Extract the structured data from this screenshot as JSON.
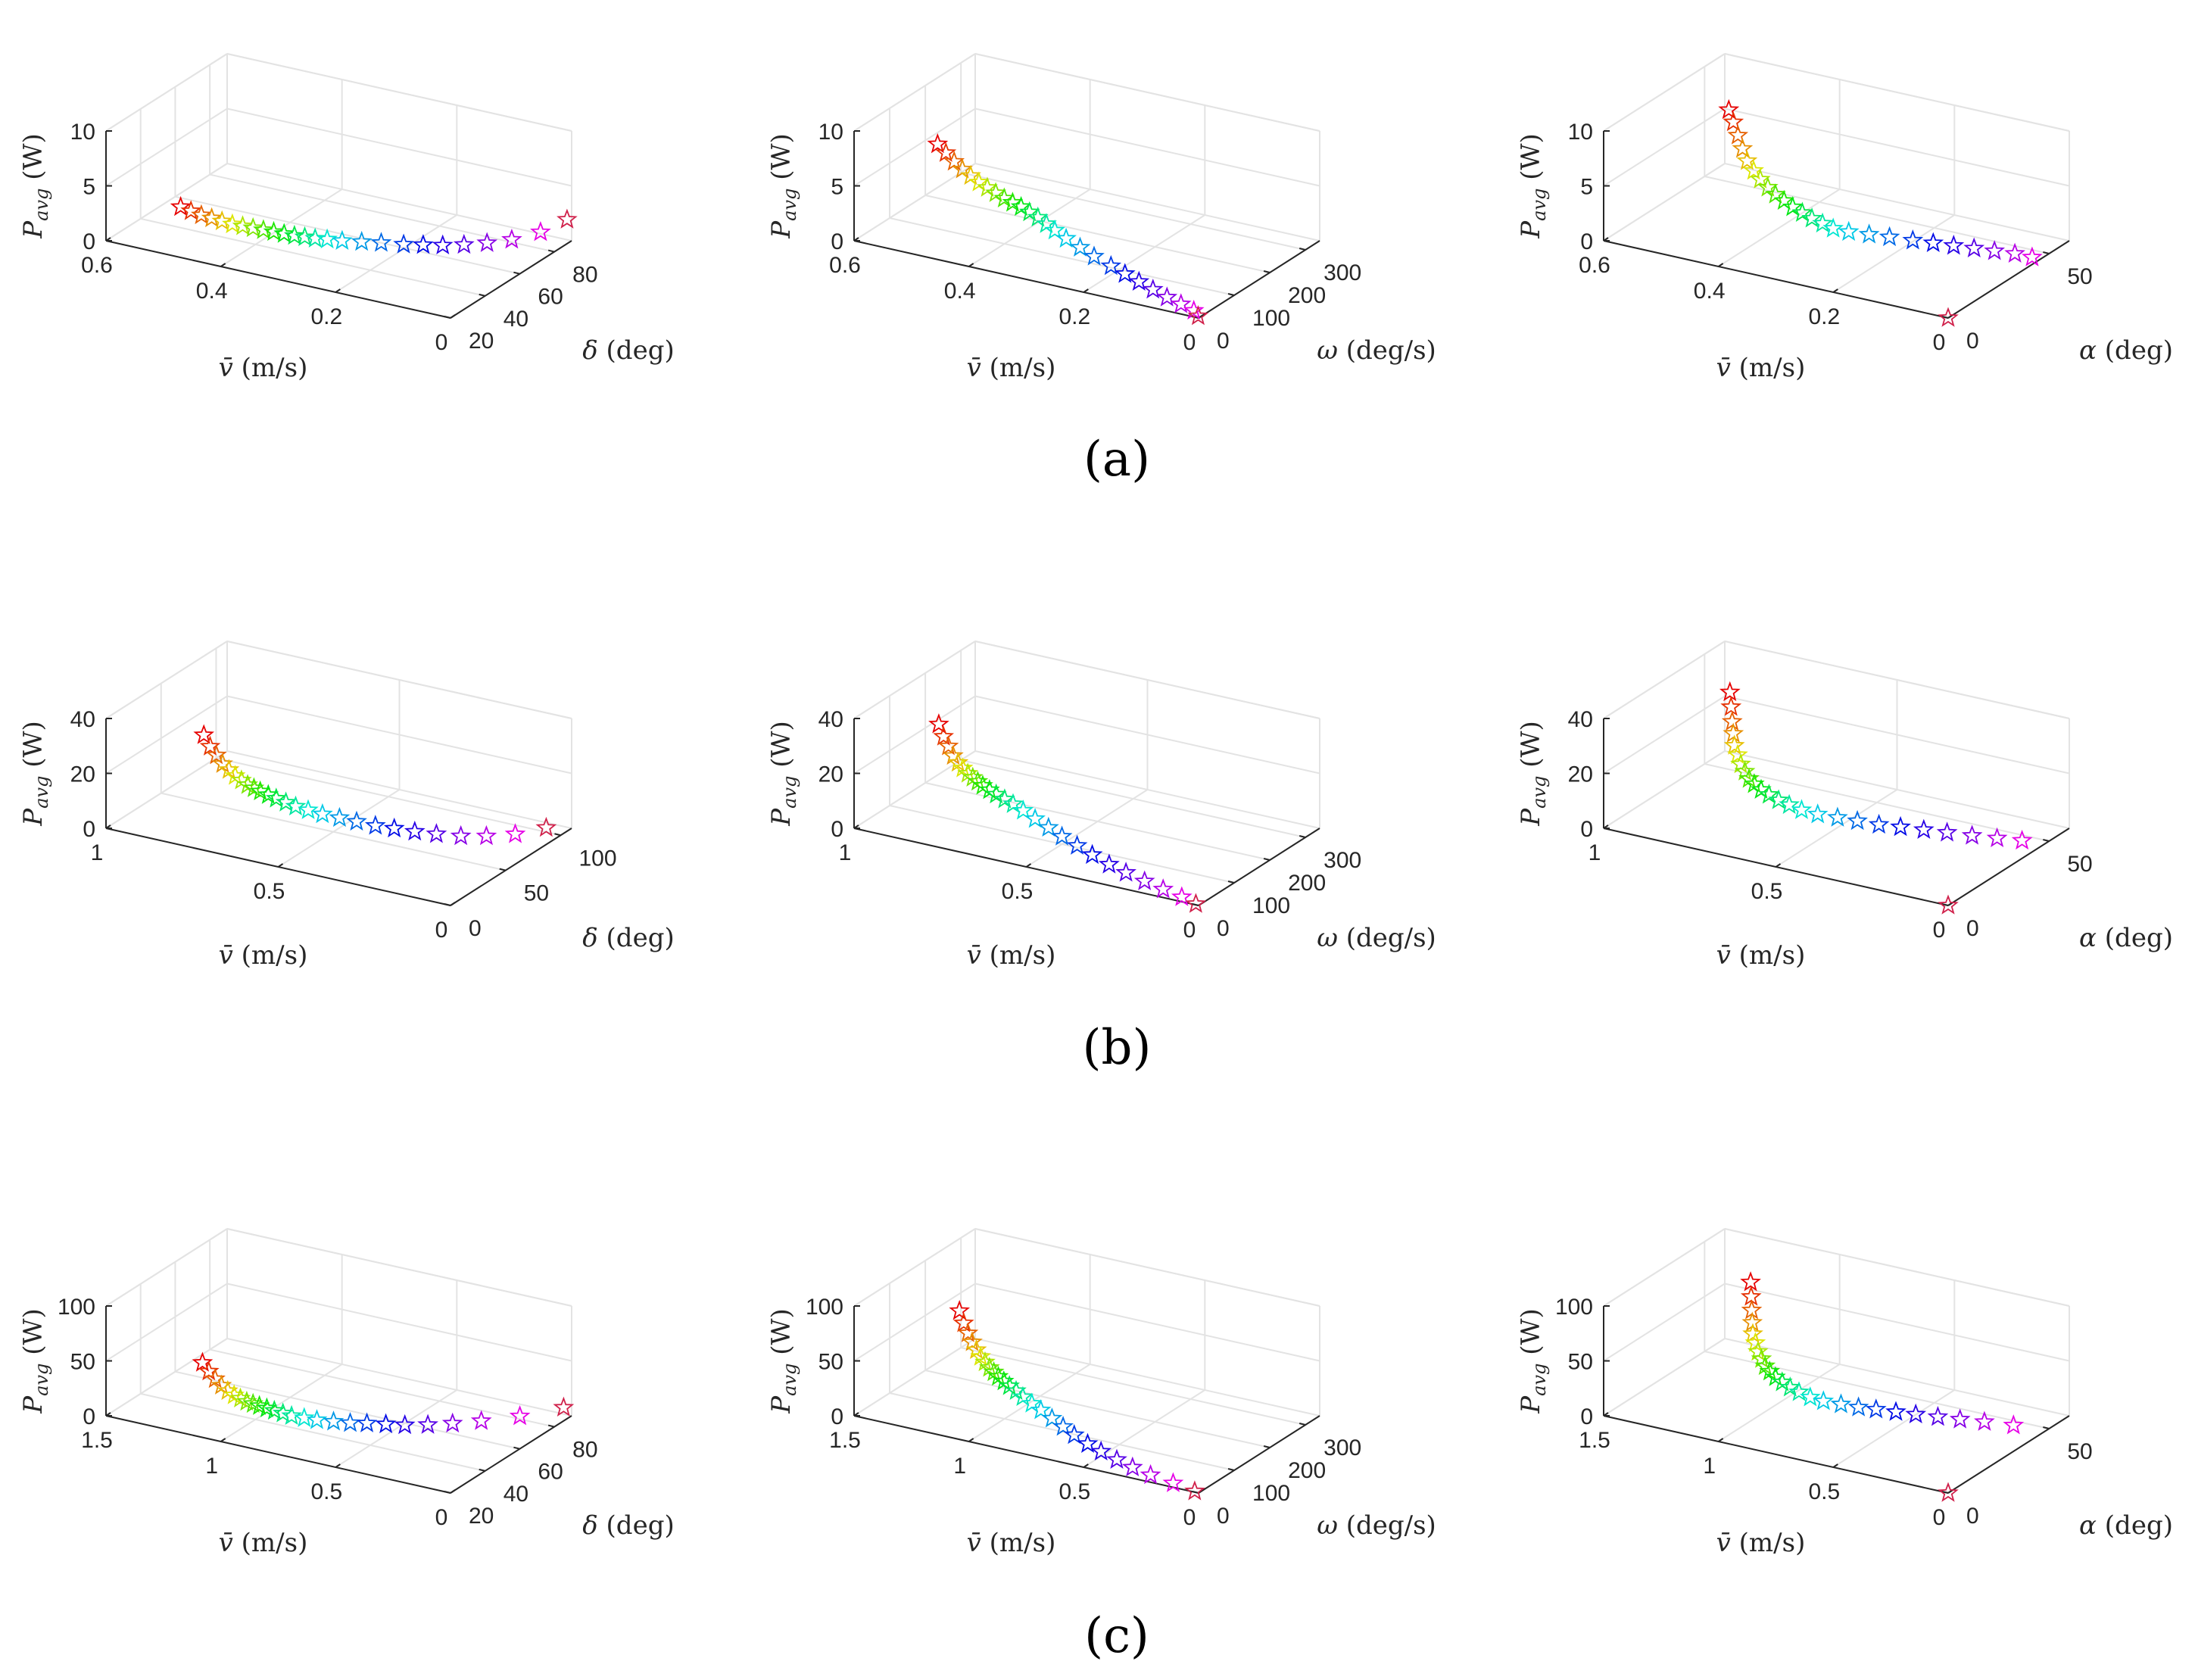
{
  "figure": {
    "panel_labels": [
      "(a)",
      "(b)",
      "(c)"
    ]
  },
  "chart_data": [
    {
      "type": "scatter3d",
      "row": "a",
      "marker": "star",
      "title": "",
      "xlabel": "v̄ (m/s)",
      "ylabel": "δ (deg)",
      "zlabel": "P_avg (W)",
      "xlim": [
        0,
        0.6
      ],
      "ylim": [
        20,
        90
      ],
      "zlim": [
        0,
        10
      ],
      "xticks": [
        "0",
        "0.2",
        "0.4",
        "0.6"
      ],
      "yticks": [
        "20",
        "40",
        "60",
        "80"
      ],
      "zticks": [
        "0",
        "5",
        "10"
      ],
      "points": {
        "x": [
          0.47,
          0.455,
          0.44,
          0.425,
          0.41,
          0.395,
          0.38,
          0.365,
          0.35,
          0.335,
          0.32,
          0.305,
          0.29,
          0.275,
          0.26,
          0.24,
          0.215,
          0.19,
          0.16,
          0.135,
          0.11,
          0.085,
          0.06,
          0.035,
          0.012,
          0.002
        ],
        "y": [
          20,
          21,
          22,
          23,
          24,
          25,
          26,
          27,
          28,
          29,
          30,
          31,
          32,
          33,
          35,
          37,
          40,
          43,
          46,
          49,
          52,
          56,
          61,
          67,
          76,
          88
        ],
        "z": [
          4.6,
          4.3,
          4.0,
          3.8,
          3.6,
          3.4,
          3.3,
          3.2,
          3.1,
          3.0,
          2.9,
          2.8,
          2.75,
          2.7,
          2.6,
          2.5,
          2.4,
          2.3,
          2.2,
          2.15,
          2.1,
          2.05,
          2.0,
          2.0,
          2.05,
          2.1
        ]
      }
    },
    {
      "type": "scatter3d",
      "row": "a",
      "marker": "star",
      "xlabel": "v̄ (m/s)",
      "ylabel": "ω (deg/s)",
      "zlabel": "P_avg (W)",
      "xlim": [
        0,
        0.6
      ],
      "ylim": [
        0,
        340
      ],
      "zlim": [
        0,
        10
      ],
      "xticks": [
        "0",
        "0.2",
        "0.4",
        "0.6"
      ],
      "yticks": [
        "0",
        "100",
        "200",
        "300"
      ],
      "zticks": [
        "0",
        "5",
        "10"
      ],
      "points": {
        "x": [
          0.47,
          0.455,
          0.44,
          0.425,
          0.41,
          0.395,
          0.38,
          0.365,
          0.35,
          0.335,
          0.32,
          0.305,
          0.29,
          0.275,
          0.26,
          0.24,
          0.215,
          0.19,
          0.16,
          0.135,
          0.11,
          0.085,
          0.06,
          0.035,
          0.012,
          0.002
        ],
        "y": [
          25,
          24,
          23,
          22,
          21,
          20,
          19.5,
          19,
          18.5,
          18,
          17.5,
          17,
          16.5,
          16,
          15.5,
          15,
          14,
          13,
          12,
          11,
          10,
          9,
          8,
          7,
          6,
          2
        ],
        "z": [
          9.8,
          9.2,
          8.6,
          8.1,
          7.7,
          7.3,
          7.0,
          6.7,
          6.4,
          6.2,
          6.0,
          5.7,
          5.4,
          5.0,
          4.6,
          4.1,
          3.6,
          3.1,
          2.6,
          2.2,
          1.8,
          1.4,
          1.0,
          0.7,
          0.4,
          0.1
        ]
      }
    },
    {
      "type": "scatter3d",
      "row": "a",
      "marker": "star",
      "xlabel": "v̄ (m/s)",
      "ylabel": "α (deg)",
      "zlabel": "P_avg (W)",
      "xlim": [
        0,
        0.6
      ],
      "ylim": [
        0,
        60
      ],
      "zlim": [
        0,
        10
      ],
      "xticks": [
        "0",
        "0.2",
        "0.4",
        "0.6"
      ],
      "yticks": [
        "0",
        "50"
      ],
      "zticks": [
        "0",
        "5",
        "10"
      ],
      "points": {
        "x": [
          0.47,
          0.455,
          0.44,
          0.425,
          0.41,
          0.395,
          0.38,
          0.365,
          0.35,
          0.335,
          0.32,
          0.305,
          0.29,
          0.275,
          0.26,
          0.24,
          0.215,
          0.19,
          0.16,
          0.135,
          0.11,
          0.085,
          0.06,
          0.035,
          0.012,
          0.0
        ],
        "y": [
          25,
          23,
          21,
          19,
          17,
          16,
          15,
          14.5,
          14,
          14,
          14,
          14.5,
          15,
          16,
          17,
          19,
          22,
          25,
          28,
          31,
          34,
          37,
          40,
          43,
          45,
          0
        ],
        "z": [
          10.5,
          9.8,
          9.0,
          8.2,
          7.5,
          6.9,
          6.4,
          5.9,
          5.5,
          5.1,
          4.7,
          4.3,
          3.9,
          3.5,
          3.1,
          2.8,
          2.5,
          2.2,
          1.9,
          1.6,
          1.3,
          1.0,
          0.7,
          0.4,
          0.1,
          0.0
        ]
      }
    },
    {
      "type": "scatter3d",
      "row": "b",
      "marker": "star",
      "xlabel": "v̄ (m/s)",
      "ylabel": "δ (deg)",
      "zlabel": "P_avg (W)",
      "xlim": [
        0,
        1
      ],
      "ylim": [
        0,
        110
      ],
      "zlim": [
        0,
        40
      ],
      "xticks": [
        "0",
        "0.5",
        "1"
      ],
      "yticks": [
        "0",
        "50",
        "100"
      ],
      "zticks": [
        "0",
        "20",
        "40"
      ],
      "points": {
        "x": [
          0.78,
          0.765,
          0.75,
          0.735,
          0.72,
          0.705,
          0.69,
          0.675,
          0.66,
          0.645,
          0.625,
          0.605,
          0.58,
          0.555,
          0.525,
          0.49,
          0.45,
          0.41,
          0.365,
          0.32,
          0.27,
          0.22,
          0.165,
          0.11,
          0.055,
          0.01
        ],
        "y": [
          20,
          21,
          22,
          23,
          24,
          25,
          26,
          27,
          28,
          29,
          30,
          31,
          32,
          33,
          35,
          37,
          40,
          43,
          46,
          49,
          52,
          56,
          61,
          67,
          76,
          90
        ],
        "z": [
          35,
          31,
          28,
          25,
          23,
          21,
          19.5,
          18,
          17,
          16,
          15,
          14,
          13,
          12,
          11,
          10,
          9,
          8,
          7,
          6.5,
          6,
          5.5,
          5,
          5,
          5,
          5
        ]
      }
    },
    {
      "type": "scatter3d",
      "row": "b",
      "marker": "star",
      "xlabel": "v̄ (m/s)",
      "ylabel": "ω (deg/s)",
      "zlabel": "P_avg (W)",
      "xlim": [
        0,
        1
      ],
      "ylim": [
        0,
        340
      ],
      "zlim": [
        0,
        40
      ],
      "xticks": [
        "0",
        "0.5",
        "1"
      ],
      "yticks": [
        "0",
        "100",
        "200",
        "300"
      ],
      "zticks": [
        "0",
        "20",
        "40"
      ],
      "points": {
        "x": [
          0.78,
          0.765,
          0.75,
          0.735,
          0.72,
          0.705,
          0.69,
          0.675,
          0.66,
          0.645,
          0.625,
          0.605,
          0.58,
          0.555,
          0.525,
          0.49,
          0.45,
          0.41,
          0.365,
          0.32,
          0.27,
          0.22,
          0.165,
          0.11,
          0.055,
          0.01
        ],
        "y": [
          25,
          24,
          23,
          22,
          21,
          20,
          19.5,
          19,
          18.5,
          18,
          17.5,
          17,
          16.5,
          16,
          15.5,
          15,
          14,
          13,
          12,
          11,
          10,
          9,
          8,
          7,
          6,
          2
        ],
        "z": [
          42,
          38,
          35,
          32,
          30,
          28.5,
          27,
          26,
          25,
          24,
          23,
          22,
          21,
          20,
          18.5,
          16.5,
          14.5,
          12.5,
          10.5,
          8.5,
          6.5,
          5,
          3.5,
          2.2,
          1.0,
          0.1
        ]
      }
    },
    {
      "type": "scatter3d",
      "row": "b",
      "marker": "star",
      "xlabel": "v̄ (m/s)",
      "ylabel": "α (deg)",
      "zlabel": "P_avg (W)",
      "xlim": [
        0,
        1
      ],
      "ylim": [
        0,
        60
      ],
      "zlim": [
        0,
        40
      ],
      "xticks": [
        "0",
        "0.5",
        "1"
      ],
      "yticks": [
        "0",
        "50"
      ],
      "zticks": [
        "0",
        "20",
        "40"
      ],
      "points": {
        "x": [
          0.78,
          0.765,
          0.75,
          0.735,
          0.72,
          0.705,
          0.69,
          0.675,
          0.66,
          0.645,
          0.625,
          0.605,
          0.58,
          0.555,
          0.525,
          0.49,
          0.45,
          0.41,
          0.365,
          0.32,
          0.27,
          0.22,
          0.165,
          0.11,
          0.055,
          0.0
        ],
        "y": [
          25,
          23,
          21,
          19,
          17,
          16,
          15,
          14.5,
          14,
          14,
          14,
          14.5,
          15,
          16,
          17,
          19,
          22,
          25,
          28,
          31,
          34,
          37,
          40,
          43,
          46,
          0
        ],
        "z": [
          44,
          40,
          36,
          33,
          30,
          27.5,
          25,
          23,
          21,
          19.5,
          18,
          16.5,
          15,
          13.5,
          12,
          10.5,
          9,
          7.5,
          6,
          5,
          4,
          3,
          2,
          1.2,
          0.5,
          0.0
        ]
      }
    },
    {
      "type": "scatter3d",
      "row": "c",
      "marker": "star",
      "xlabel": "v̄ (m/s)",
      "ylabel": "δ (deg)",
      "zlabel": "P_avg (W)",
      "xlim": [
        0,
        1.5
      ],
      "ylim": [
        20,
        90
      ],
      "zlim": [
        0,
        100
      ],
      "xticks": [
        "0",
        "0.5",
        "1",
        "1.5"
      ],
      "yticks": [
        "20",
        "40",
        "60",
        "80"
      ],
      "zticks": [
        "0",
        "50",
        "100"
      ],
      "points": {
        "x": [
          1.08,
          1.06,
          1.04,
          1.02,
          1.0,
          0.98,
          0.96,
          0.94,
          0.92,
          0.9,
          0.875,
          0.85,
          0.82,
          0.79,
          0.75,
          0.71,
          0.66,
          0.61,
          0.56,
          0.5,
          0.44,
          0.37,
          0.3,
          0.22,
          0.12,
          0.02
        ],
        "y": [
          20,
          21,
          22,
          23,
          24,
          25,
          26,
          27,
          28,
          29,
          30,
          31,
          32,
          33,
          35,
          37,
          40,
          43,
          46,
          49,
          52,
          56,
          61,
          67,
          76,
          88
        ],
        "z": [
          68,
          60,
          53,
          47,
          42,
          38,
          35,
          32,
          30,
          28,
          26,
          24,
          22,
          20,
          18,
          16,
          14,
          12,
          11,
          10,
          9,
          8.5,
          8,
          8,
          8,
          8.5
        ]
      }
    },
    {
      "type": "scatter3d",
      "row": "c",
      "marker": "star",
      "xlabel": "v̄ (m/s)",
      "ylabel": "ω (deg/s)",
      "zlabel": "P_avg (W)",
      "xlim": [
        0,
        1.5
      ],
      "ylim": [
        0,
        340
      ],
      "zlim": [
        0,
        100
      ],
      "xticks": [
        "0",
        "0.5",
        "1",
        "1.5"
      ],
      "yticks": [
        "0",
        "100",
        "200",
        "300"
      ],
      "zticks": [
        "0",
        "50",
        "100"
      ],
      "points": {
        "x": [
          1.08,
          1.06,
          1.04,
          1.02,
          1.0,
          0.98,
          0.96,
          0.94,
          0.92,
          0.9,
          0.875,
          0.85,
          0.82,
          0.79,
          0.75,
          0.71,
          0.66,
          0.61,
          0.56,
          0.5,
          0.44,
          0.37,
          0.3,
          0.22,
          0.12,
          0.02
        ],
        "y": [
          25,
          24,
          23,
          22,
          21,
          20,
          19.5,
          19,
          18.5,
          18,
          17.5,
          17,
          16.5,
          16,
          15.5,
          15,
          14,
          13,
          12,
          11,
          10,
          9,
          8,
          7,
          6,
          2
        ],
        "z": [
          110,
          100,
          92,
          85,
          79,
          74,
          70,
          66,
          63,
          60,
          57,
          54,
          51,
          47,
          43,
          39,
          34,
          29,
          24,
          19,
          15,
          11,
          7.5,
          4.5,
          2.0,
          0.2
        ]
      }
    },
    {
      "type": "scatter3d",
      "row": "c",
      "marker": "star",
      "xlabel": "v̄ (m/s)",
      "ylabel": "α (deg)",
      "zlabel": "P_avg (W)",
      "xlim": [
        0,
        1.5
      ],
      "ylim": [
        0,
        60
      ],
      "zlim": [
        0,
        100
      ],
      "xticks": [
        "0",
        "0.5",
        "1",
        "1.5"
      ],
      "yticks": [
        "0",
        "50"
      ],
      "zticks": [
        "0",
        "50",
        "100"
      ],
      "points": {
        "x": [
          1.08,
          1.06,
          1.04,
          1.02,
          1.0,
          0.98,
          0.96,
          0.94,
          0.92,
          0.9,
          0.875,
          0.85,
          0.82,
          0.79,
          0.75,
          0.71,
          0.66,
          0.61,
          0.56,
          0.5,
          0.44,
          0.37,
          0.3,
          0.22,
          0.12,
          0.0
        ],
        "y": [
          25,
          23,
          21,
          19,
          17,
          16,
          15,
          14.5,
          14,
          14,
          14,
          14.5,
          15,
          16,
          17,
          19,
          22,
          25,
          28,
          31,
          34,
          37,
          40,
          43,
          46,
          0
        ],
        "z": [
          112,
          102,
          93,
          85,
          78,
          72,
          66,
          61,
          56,
          52,
          48,
          44,
          40,
          36,
          32,
          28,
          24,
          20,
          17,
          14,
          11,
          8.5,
          6,
          4,
          2,
          0
        ]
      }
    }
  ]
}
